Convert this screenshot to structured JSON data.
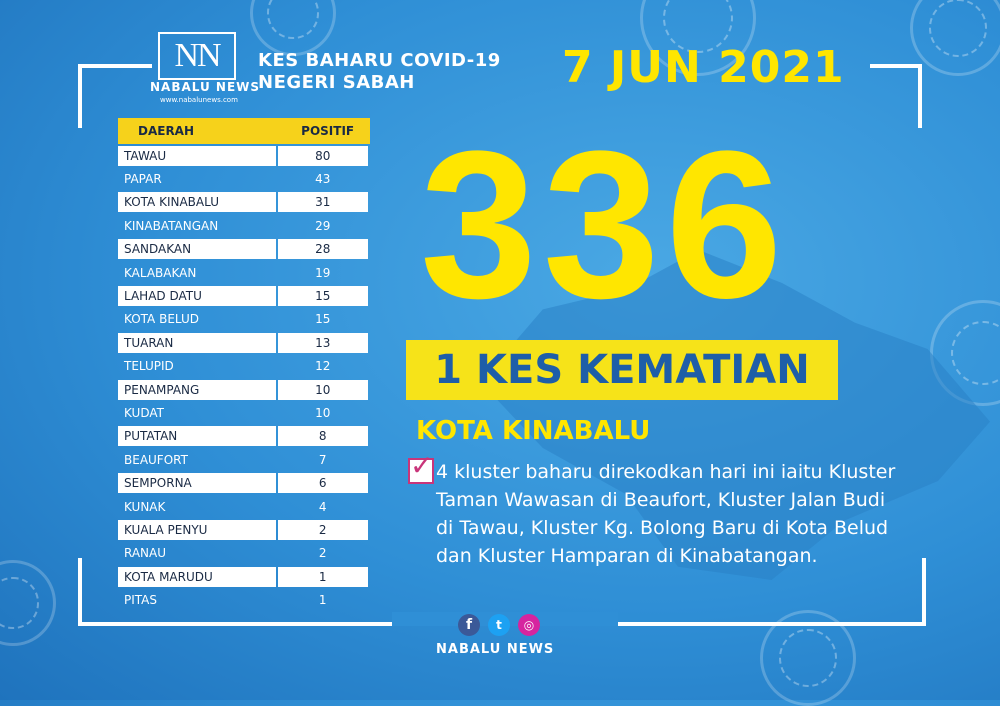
{
  "brand": {
    "logo_letters": "NN",
    "name": "NABALU NEWS",
    "url": "www.nabalunews.com"
  },
  "header": {
    "title_line1": "KES BAHARU COVID-19",
    "title_line2": "NEGERI SABAH",
    "date": "7 JUN 2021"
  },
  "table": {
    "col_district": "DAERAH",
    "col_positive": "POSITIF",
    "rows": [
      {
        "district": "TAWAU",
        "positive": "80"
      },
      {
        "district": "PAPAR",
        "positive": "43"
      },
      {
        "district": "KOTA KINABALU",
        "positive": "31"
      },
      {
        "district": "KINABATANGAN",
        "positive": "29"
      },
      {
        "district": "SANDAKAN",
        "positive": "28"
      },
      {
        "district": "KALABAKAN",
        "positive": "19"
      },
      {
        "district": "LAHAD DATU",
        "positive": "15"
      },
      {
        "district": "KOTA BELUD",
        "positive": "15"
      },
      {
        "district": "TUARAN",
        "positive": "13"
      },
      {
        "district": "TELUPID",
        "positive": "12"
      },
      {
        "district": "PENAMPANG",
        "positive": "10"
      },
      {
        "district": "KUDAT",
        "positive": "10"
      },
      {
        "district": "PUTATAN",
        "positive": "8"
      },
      {
        "district": "BEAUFORT",
        "positive": "7"
      },
      {
        "district": "SEMPORNA",
        "positive": "6"
      },
      {
        "district": "KUNAK",
        "positive": "4"
      },
      {
        "district": "KUALA PENYU",
        "positive": "2"
      },
      {
        "district": "RANAU",
        "positive": "2"
      },
      {
        "district": "KOTA MARUDU",
        "positive": "1"
      },
      {
        "district": "PITAS",
        "positive": "1"
      }
    ]
  },
  "summary": {
    "total_cases": "336",
    "deaths": "1 KES KEMATIAN",
    "death_location": "KOTA KINABALU",
    "note": "4 kluster baharu direkodkan hari ini iaitu Kluster Taman Wawasan di Beaufort, Kluster Jalan Budi di Tawau, Kluster Kg. Bolong Baru di Kota Belud dan Kluster Hamparan di Kinabatangan."
  },
  "footer": {
    "social_icons": [
      "facebook-icon",
      "twitter-icon",
      "instagram-icon"
    ],
    "name": "NABALU NEWS"
  },
  "colors": {
    "background": "#2f8fd6",
    "accent_yellow": "#ffe600",
    "banner_yellow": "#f6e319",
    "banner_text": "#1e5ea8"
  }
}
